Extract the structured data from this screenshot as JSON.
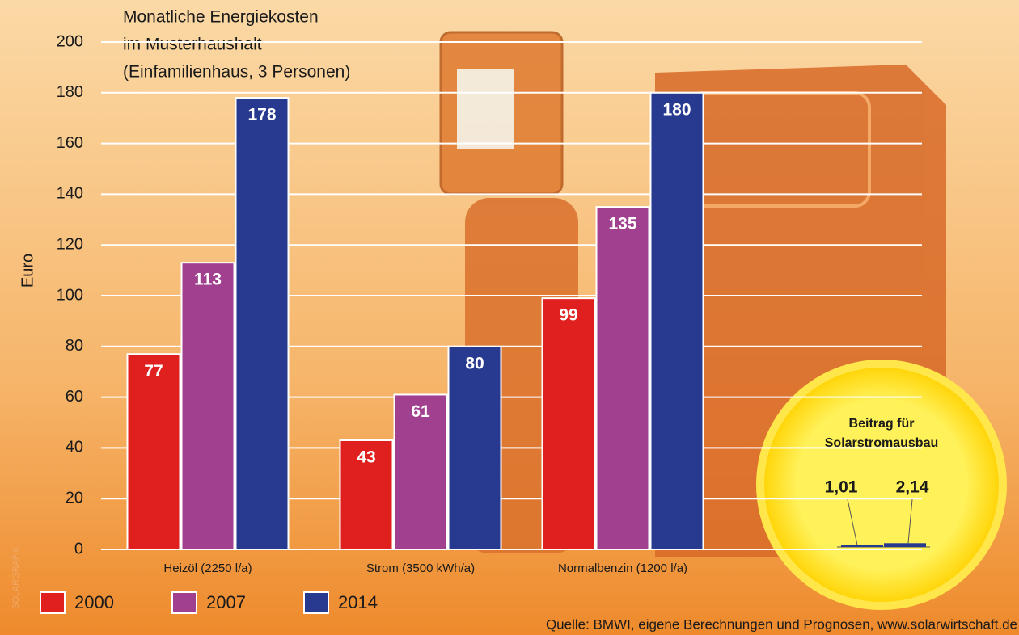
{
  "chart_data": [
    {
      "type": "bar",
      "title": [
        "Monatliche Energiekosten",
        "im Musterhaushalt",
        "(Einfamilienhaus, 3 Personen)"
      ],
      "y_label": "Euro",
      "credit": "SOLARGRAFIK",
      "source": "Quelle: BMWI, eigene Berechnungen und Prognosen, www.solarwirtschaft.de",
      "categories": [
        "Heizöl (2250 l/a)",
        "Strom (3500 kWh/a)",
        "Normalbenzin (1200 l/a)"
      ],
      "series": [
        {
          "name": "2000",
          "color": "#e0201e",
          "values": [
            77,
            43,
            99
          ]
        },
        {
          "name": "2007",
          "color": "#a0408e",
          "values": [
            113,
            61,
            135
          ]
        },
        {
          "name": "2014",
          "color": "#283a90",
          "values": [
            178,
            80,
            180
          ]
        }
      ],
      "ylim": [
        0,
        200
      ],
      "yticks": [
        0,
        20,
        40,
        60,
        80,
        100,
        120,
        140,
        160,
        180,
        200
      ],
      "grid": true,
      "legend": "bottom"
    },
    {
      "type": "bar",
      "title": [
        "Beitrag für",
        "Solarstromausbau"
      ],
      "values": [
        1.01,
        2.14
      ],
      "value_labels": [
        "1,01",
        "2,14"
      ],
      "color": "#283a90"
    }
  ]
}
